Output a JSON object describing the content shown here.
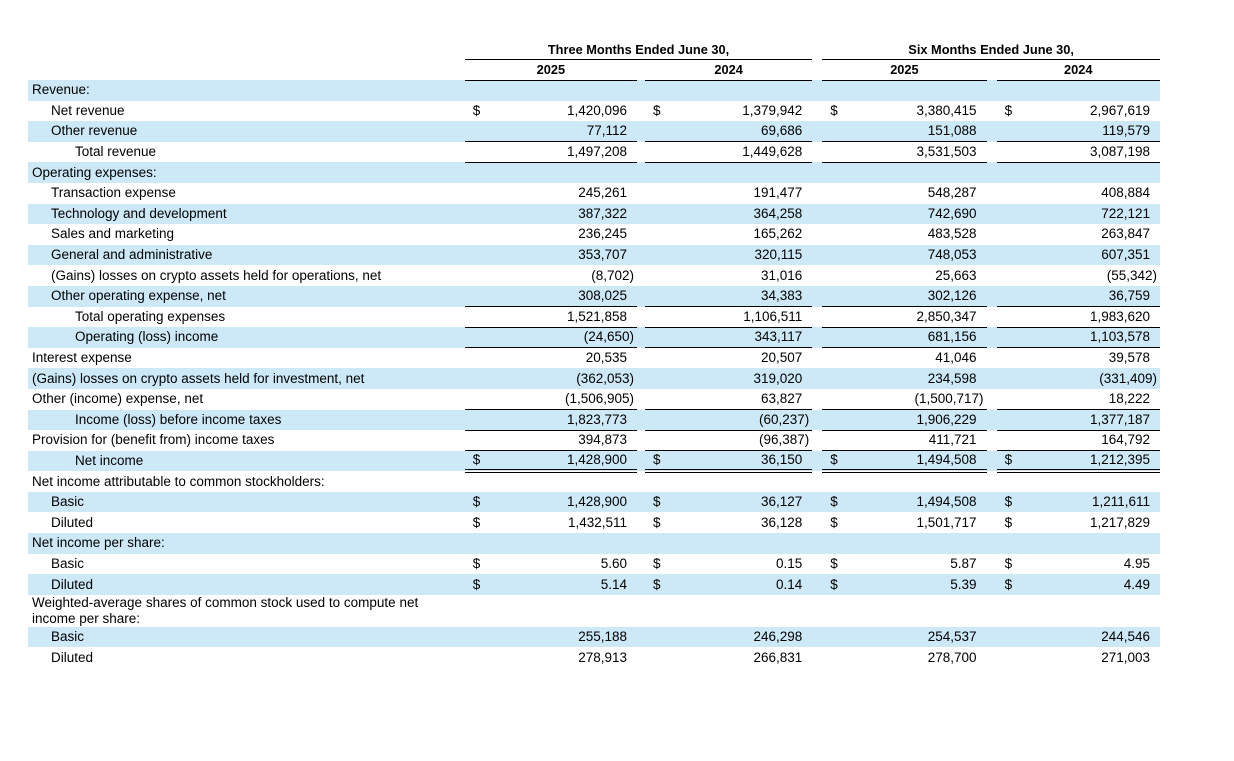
{
  "accent_colors": {
    "row_stripe": "#cde9f8",
    "rule": "#000000",
    "text": "#000000",
    "background": "#ffffff"
  },
  "header": {
    "col_groups": [
      {
        "label": "Three Months Ended June 30,"
      },
      {
        "label": "Six Months Ended June 30,"
      }
    ],
    "years": [
      "2025",
      "2024",
      "2025",
      "2024"
    ]
  },
  "rows": [
    {
      "label": "Revenue:",
      "indent": 0,
      "shade": true,
      "dollar": false,
      "values": [
        "",
        "",
        "",
        ""
      ]
    },
    {
      "label": "Net revenue",
      "indent": 1,
      "shade": false,
      "dollar": true,
      "values": [
        "1,420,096",
        "1,379,942",
        "3,380,415",
        "2,967,619"
      ]
    },
    {
      "label": "Other revenue",
      "indent": 1,
      "shade": true,
      "dollar": false,
      "border_bottom": true,
      "values": [
        "77,112",
        "69,686",
        "151,088",
        "119,579"
      ]
    },
    {
      "label": "Total revenue",
      "indent": 2,
      "shade": false,
      "dollar": false,
      "border_bottom": true,
      "values": [
        "1,497,208",
        "1,449,628",
        "3,531,503",
        "3,087,198"
      ]
    },
    {
      "label": "Operating expenses:",
      "indent": 0,
      "shade": true,
      "dollar": false,
      "values": [
        "",
        "",
        "",
        ""
      ]
    },
    {
      "label": "Transaction expense",
      "indent": 1,
      "shade": false,
      "dollar": false,
      "values": [
        "245,261",
        "191,477",
        "548,287",
        "408,884"
      ]
    },
    {
      "label": "Technology and development",
      "indent": 1,
      "shade": true,
      "dollar": false,
      "values": [
        "387,322",
        "364,258",
        "742,690",
        "722,121"
      ]
    },
    {
      "label": "Sales and marketing",
      "indent": 1,
      "shade": false,
      "dollar": false,
      "values": [
        "236,245",
        "165,262",
        "483,528",
        "263,847"
      ]
    },
    {
      "label": "General and administrative",
      "indent": 1,
      "shade": true,
      "dollar": false,
      "values": [
        "353,707",
        "320,115",
        "748,053",
        "607,351"
      ]
    },
    {
      "label": "(Gains) losses on crypto assets held for operations, net",
      "indent": 1,
      "shade": false,
      "dollar": false,
      "values": [
        "(8,702)",
        "31,016",
        "25,663",
        "(55,342)"
      ]
    },
    {
      "label": "Other operating expense, net",
      "indent": 1,
      "shade": true,
      "dollar": false,
      "border_bottom": true,
      "values": [
        "308,025",
        "34,383",
        "302,126",
        "36,759"
      ]
    },
    {
      "label": "Total operating expenses",
      "indent": 2,
      "shade": false,
      "dollar": false,
      "border_bottom": true,
      "values": [
        "1,521,858",
        "1,106,511",
        "2,850,347",
        "1,983,620"
      ]
    },
    {
      "label": "Operating (loss) income",
      "indent": 2,
      "shade": true,
      "dollar": false,
      "border_bottom": true,
      "values": [
        "(24,650)",
        "343,117",
        "681,156",
        "1,103,578"
      ]
    },
    {
      "label": "Interest expense",
      "indent": 0,
      "shade": false,
      "dollar": false,
      "values": [
        "20,535",
        "20,507",
        "41,046",
        "39,578"
      ]
    },
    {
      "label": "(Gains) losses on crypto assets held for investment, net",
      "indent": 0,
      "shade": true,
      "dollar": false,
      "values": [
        "(362,053)",
        "319,020",
        "234,598",
        "(331,409)"
      ]
    },
    {
      "label": "Other (income) expense, net",
      "indent": 0,
      "shade": false,
      "dollar": false,
      "border_bottom": true,
      "values": [
        "(1,506,905)",
        "63,827",
        "(1,500,717)",
        "18,222"
      ]
    },
    {
      "label": "Income (loss) before income taxes",
      "indent": 2,
      "shade": true,
      "dollar": false,
      "border_bottom": true,
      "values": [
        "1,823,773",
        "(60,237)",
        "1,906,229",
        "1,377,187"
      ]
    },
    {
      "label": "Provision for (benefit from) income taxes",
      "indent": 0,
      "shade": false,
      "dollar": false,
      "border_bottom": true,
      "values": [
        "394,873",
        "(96,387)",
        "411,721",
        "164,792"
      ]
    },
    {
      "label": "Net income",
      "indent": 2,
      "shade": true,
      "dollar": true,
      "double_bottom": true,
      "values": [
        "1,428,900",
        "36,150",
        "1,494,508",
        "1,212,395"
      ]
    },
    {
      "label": "Net income attributable to common stockholders:",
      "indent": 0,
      "shade": false,
      "dollar": false,
      "values": [
        "",
        "",
        "",
        ""
      ]
    },
    {
      "label": "Basic",
      "indent": 1,
      "shade": true,
      "dollar": true,
      "values": [
        "1,428,900",
        "36,127",
        "1,494,508",
        "1,211,611"
      ]
    },
    {
      "label": "Diluted",
      "indent": 1,
      "shade": false,
      "dollar": true,
      "values": [
        "1,432,511",
        "36,128",
        "1,501,717",
        "1,217,829"
      ]
    },
    {
      "label": "Net income per share:",
      "indent": 0,
      "shade": true,
      "dollar": false,
      "values": [
        "",
        "",
        "",
        ""
      ]
    },
    {
      "label": "Basic",
      "indent": 1,
      "shade": false,
      "dollar": true,
      "values": [
        "5.60",
        "0.15",
        "5.87",
        "4.95"
      ]
    },
    {
      "label": "Diluted",
      "indent": 1,
      "shade": true,
      "dollar": true,
      "values": [
        "5.14",
        "0.14",
        "5.39",
        "4.49"
      ]
    },
    {
      "label": "Weighted-average shares of common stock used to compute net income per share:",
      "indent": 0,
      "shade": false,
      "dollar": false,
      "values": [
        "",
        "",
        "",
        ""
      ]
    },
    {
      "label": "Basic",
      "indent": 1,
      "shade": true,
      "dollar": false,
      "values": [
        "255,188",
        "246,298",
        "254,537",
        "244,546"
      ]
    },
    {
      "label": "Diluted",
      "indent": 1,
      "shade": false,
      "dollar": false,
      "values": [
        "278,913",
        "266,831",
        "278,700",
        "271,003"
      ]
    }
  ]
}
